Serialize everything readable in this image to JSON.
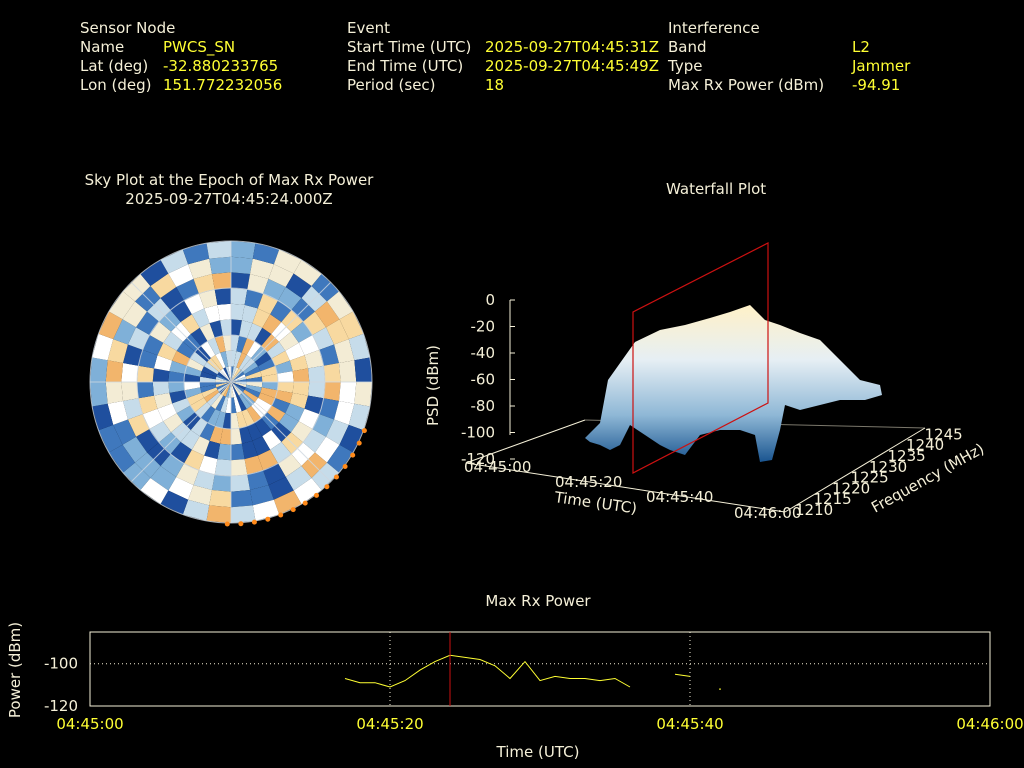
{
  "header": {
    "sensor": {
      "title": "Sensor Node",
      "rows": [
        {
          "label": "Name",
          "value": "PWCS_SN"
        },
        {
          "label": "Lat (deg)",
          "value": "-32.880233765"
        },
        {
          "label": "Lon (deg)",
          "value": "151.772232056"
        }
      ]
    },
    "event": {
      "title": "Event",
      "rows": [
        {
          "label": "Start Time (UTC)",
          "value": "2025-09-27T04:45:31Z"
        },
        {
          "label": "End Time (UTC)",
          "value": "2025-09-27T04:45:49Z"
        },
        {
          "label": "Period (sec)",
          "value": "18"
        }
      ]
    },
    "interference": {
      "title": "Interference",
      "rows": [
        {
          "label": "Band",
          "value": "L2"
        },
        {
          "label": "Type",
          "value": "Jammer"
        },
        {
          "label": "Max Rx Power (dBm)",
          "value": "-94.91"
        }
      ]
    }
  },
  "skyplot": {
    "title_line1": "Sky Plot at the Epoch of Max Rx Power",
    "title_line2": "2025-09-27T04:45:24.000Z"
  },
  "waterfall": {
    "title": "Waterfall Plot",
    "zlabel": "PSD (dBm)",
    "xlabel": "Time (UTC)",
    "ylabel": "Frequency (MHz)",
    "z_ticks": [
      "0",
      "-20",
      "-40",
      "-60",
      "-80",
      "-100",
      "-120"
    ],
    "time_ticks": [
      "04:45:00",
      "04:45:20",
      "04:45:40",
      "04:46:00"
    ],
    "freq_ticks": [
      "1210",
      "1215",
      "1220",
      "1225",
      "1230",
      "1235",
      "1240",
      "1245"
    ],
    "colors": {
      "surface_high": "#ffe8b0",
      "surface_low": "#1a5590",
      "marker": "#cc1111"
    }
  },
  "chart_data": {
    "type": "line",
    "title": "Max Rx Power",
    "xlabel": "Time (UTC)",
    "ylabel": "Power (dBm)",
    "x_ticks": [
      "04:45:00",
      "04:45:20",
      "04:45:40",
      "04:46:00"
    ],
    "y_ticks": [
      "-100",
      "-120"
    ],
    "xlim": [
      0,
      60
    ],
    "ylim": [
      -120,
      -85
    ],
    "marker_time_sec": 24,
    "series": [
      {
        "color": "#ffff33",
        "segments": [
          [
            [
              17,
              -107
            ],
            [
              18,
              -109
            ],
            [
              19,
              -109
            ],
            [
              20,
              -111
            ],
            [
              21,
              -108
            ],
            [
              22,
              -103
            ],
            [
              23,
              -99
            ],
            [
              24,
              -96
            ],
            [
              25,
              -97
            ],
            [
              26,
              -98
            ],
            [
              27,
              -101
            ],
            [
              28,
              -107
            ],
            [
              29,
              -99
            ],
            [
              30,
              -108
            ],
            [
              31,
              -106
            ],
            [
              32,
              -107
            ],
            [
              33,
              -107
            ],
            [
              34,
              -108
            ],
            [
              35,
              -107
            ],
            [
              36,
              -111
            ]
          ],
          [
            [
              39,
              -105
            ],
            [
              40,
              -106
            ]
          ],
          [
            [
              42,
              -112
            ]
          ]
        ]
      }
    ],
    "colors": {
      "axes": "#f5f0d8",
      "marker": "#cc1111"
    }
  }
}
